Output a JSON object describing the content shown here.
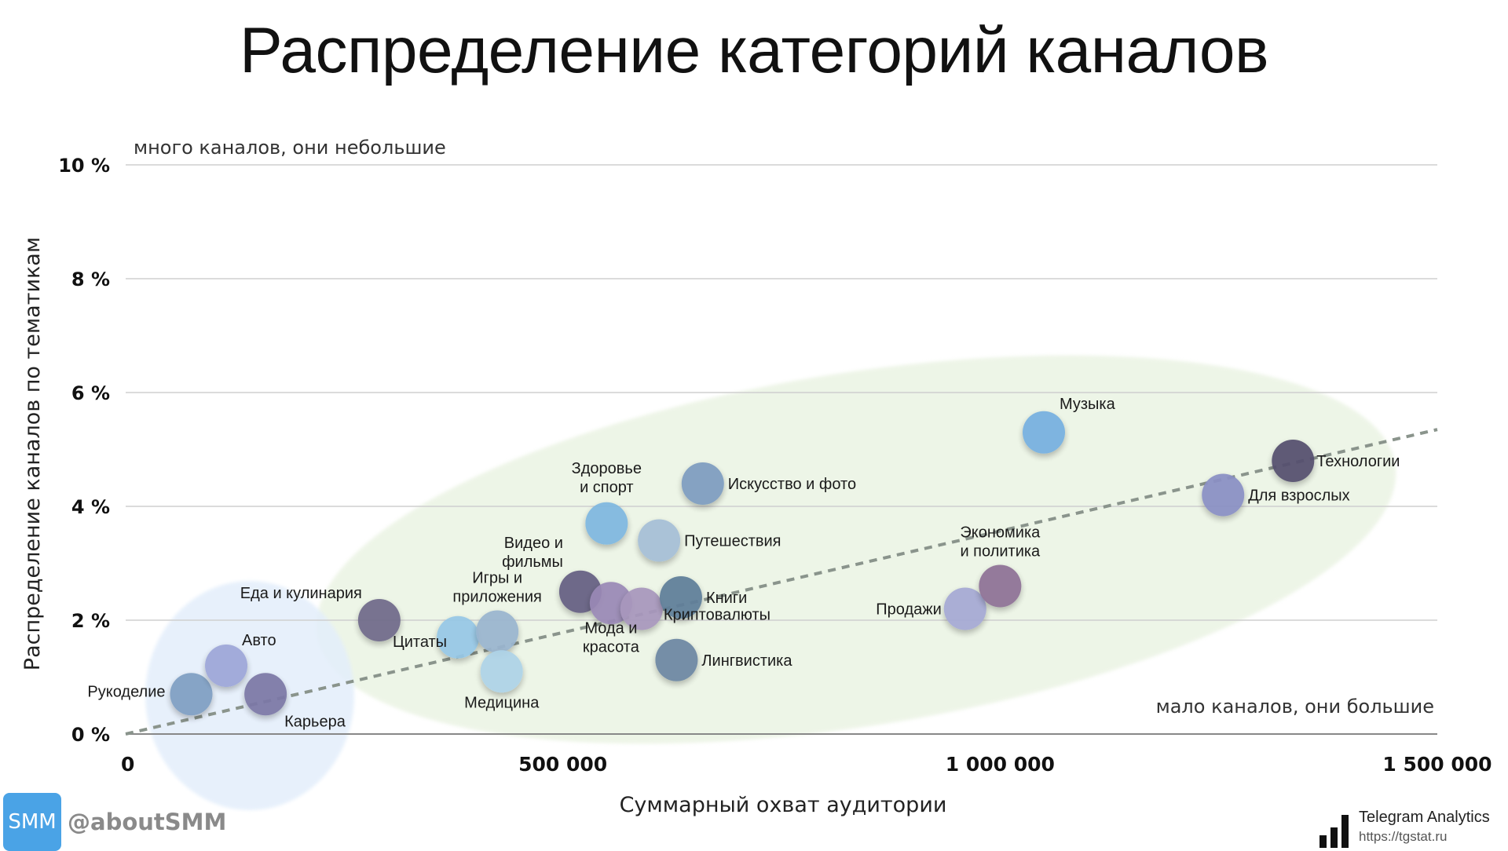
{
  "chart_data": {
    "type": "scatter",
    "title": "Распределение категорий каналов",
    "xlabel": "Суммарный охват аудитории",
    "ylabel": "Распределение каналов по тематикам",
    "xlim": [
      0,
      1500000
    ],
    "ylim": [
      0,
      10
    ],
    "x_ticks": [
      {
        "value": 0,
        "label": "0"
      },
      {
        "value": 500000,
        "label": "500 000"
      },
      {
        "value": 1000000,
        "label": "1 000 000"
      },
      {
        "value": 1500000,
        "label": "1 500 000"
      }
    ],
    "y_ticks": [
      {
        "value": 0,
        "label": "0 %"
      },
      {
        "value": 2,
        "label": "2 %"
      },
      {
        "value": 4,
        "label": "4 %"
      },
      {
        "value": 6,
        "label": "6 %"
      },
      {
        "value": 8,
        "label": "8 %"
      },
      {
        "value": 10,
        "label": "10 %"
      }
    ],
    "grid": true,
    "annotations": {
      "top_left": "много каналов, они небольшие",
      "bottom_right": "мало каналов, они большие"
    },
    "trendline": {
      "style": "dashed",
      "color": "#8a948c",
      "from": [
        0,
        0
      ],
      "to": [
        1500000,
        5.35
      ]
    },
    "points": [
      {
        "label": "Рукоделие",
        "x": 75000,
        "y": 0.7,
        "color": "#7f9fc2"
      },
      {
        "label": "Авто",
        "x": 115000,
        "y": 1.2,
        "color": "#9da6d8"
      },
      {
        "label": "Карьера",
        "x": 160000,
        "y": 0.7,
        "color": "#7c78a6"
      },
      {
        "label": "Еда и кулинария",
        "x": 290000,
        "y": 2.0,
        "color": "#6f6a8a"
      },
      {
        "label": "Цитаты",
        "x": 380000,
        "y": 1.7,
        "color": "#96c7e6"
      },
      {
        "label": "Игры и приложения",
        "x": 425000,
        "y": 1.8,
        "color": "#9ab5cf"
      },
      {
        "label": "Медицина",
        "x": 430000,
        "y": 1.1,
        "color": "#aed3e8"
      },
      {
        "label": "Видео и фильмы",
        "x": 520000,
        "y": 2.5,
        "color": "#655f82"
      },
      {
        "label": "Мода и красота",
        "x": 555000,
        "y": 2.3,
        "color": "#9a89b6"
      },
      {
        "label": "Криптовалюты",
        "x": 590000,
        "y": 2.2,
        "color": "#a897bd"
      },
      {
        "label": "Здоровье и спорт",
        "x": 550000,
        "y": 3.7,
        "color": "#7fb7e0"
      },
      {
        "label": "Путешествия",
        "x": 610000,
        "y": 3.4,
        "color": "#a6bfd6"
      },
      {
        "label": "Книги",
        "x": 635000,
        "y": 2.4,
        "color": "#5f7e99"
      },
      {
        "label": "Лингвистика",
        "x": 630000,
        "y": 1.3,
        "color": "#6c87a3"
      },
      {
        "label": "Искусство и фото",
        "x": 660000,
        "y": 4.4,
        "color": "#7e9cc0"
      },
      {
        "label": "Продажи",
        "x": 960000,
        "y": 2.2,
        "color": "#a6a9d4"
      },
      {
        "label": "Экономика и политика",
        "x": 1000000,
        "y": 2.6,
        "color": "#8e7196"
      },
      {
        "label": "Музыка",
        "x": 1050000,
        "y": 5.3,
        "color": "#76b0e0"
      },
      {
        "label": "Для взрослых",
        "x": 1255000,
        "y": 4.2,
        "color": "#8a8fc4"
      },
      {
        "label": "Технологии",
        "x": 1335000,
        "y": 4.8,
        "color": "#55506e"
      }
    ]
  },
  "footer": {
    "brand_badge": "SMM",
    "brand_handle": "@aboutSMM",
    "source_name": "Telegram Analytics",
    "source_url": "https://tgstat.ru"
  }
}
